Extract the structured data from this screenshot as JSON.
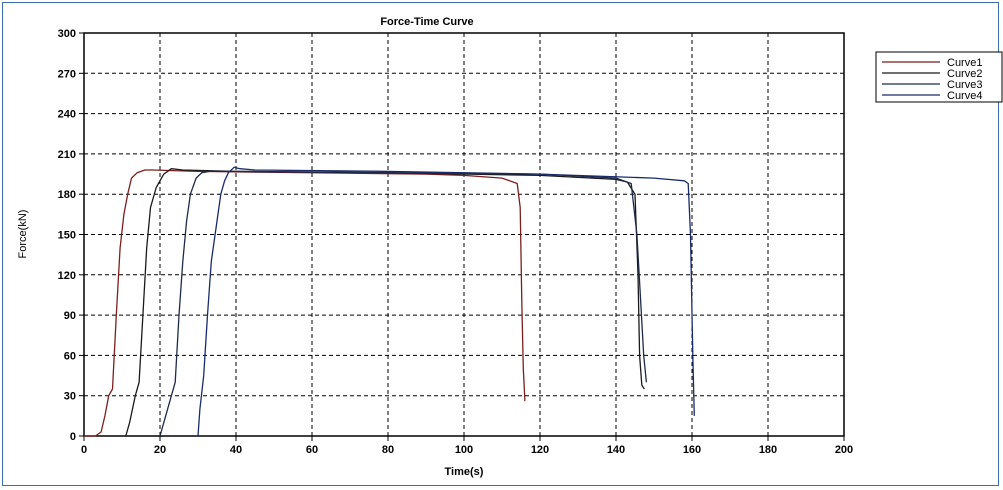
{
  "chart_data": {
    "type": "line",
    "title": "Force-Time Curve",
    "xlabel": "Time(s)",
    "ylabel": "Force(kN)",
    "xlim": [
      0,
      200
    ],
    "ylim": [
      0,
      300
    ],
    "xticks": [
      0,
      20,
      40,
      60,
      80,
      100,
      120,
      140,
      160,
      180,
      200
    ],
    "yticks": [
      0,
      30,
      60,
      90,
      120,
      150,
      180,
      210,
      240,
      270,
      300
    ],
    "grid": true,
    "legend_position": "top-right",
    "series": [
      {
        "name": "Curve1",
        "color": "#7a1f1f",
        "x": [
          0,
          3,
          4.5,
          5.5,
          6.5,
          7.5,
          8.5,
          9.5,
          10.5,
          11.5,
          12.5,
          14,
          16,
          18,
          30,
          60,
          90,
          100,
          110,
          114,
          114.8,
          115.2,
          115.6,
          116,
          116
        ],
        "y": [
          0,
          0,
          3,
          15,
          30,
          35,
          90,
          140,
          165,
          180,
          192,
          196,
          198,
          198,
          197,
          196,
          195,
          194,
          192,
          188,
          170,
          100,
          50,
          28,
          26
        ]
      },
      {
        "name": "Curve2",
        "color": "#1a1a1a",
        "x": [
          11,
          12,
          13.5,
          14.5,
          15.5,
          16.5,
          17.5,
          19,
          21,
          23,
          26,
          40,
          80,
          120,
          140,
          143,
          145,
          145.8,
          146.2,
          146.8,
          147.2,
          147.5
        ],
        "y": [
          0,
          10,
          30,
          40,
          90,
          140,
          170,
          185,
          195,
          199,
          198,
          197,
          196,
          194,
          191,
          189,
          180,
          120,
          60,
          38,
          36,
          35
        ]
      },
      {
        "name": "Curve3",
        "color": "#1f2a4a",
        "x": [
          20,
          21,
          23,
          24,
          25,
          26,
          27,
          28,
          29.5,
          31,
          33,
          40,
          80,
          120,
          140,
          144,
          145.5,
          146.5,
          147.3,
          148
        ],
        "y": [
          0,
          10,
          30,
          40,
          90,
          130,
          160,
          180,
          192,
          196,
          197,
          197,
          196,
          195,
          192,
          188,
          150,
          100,
          60,
          40
        ]
      },
      {
        "name": "Curve4",
        "color": "#1a2b6b",
        "x": [
          30,
          30.5,
          31.5,
          32.5,
          33.5,
          35,
          36,
          37,
          38,
          39.5,
          41,
          45,
          80,
          120,
          150,
          158,
          159,
          159.6,
          160.2,
          160.6
        ],
        "y": [
          0,
          20,
          45,
          90,
          130,
          160,
          180,
          190,
          196,
          200,
          199,
          198,
          197,
          195,
          192,
          190,
          188,
          150,
          60,
          15
        ]
      }
    ]
  }
}
